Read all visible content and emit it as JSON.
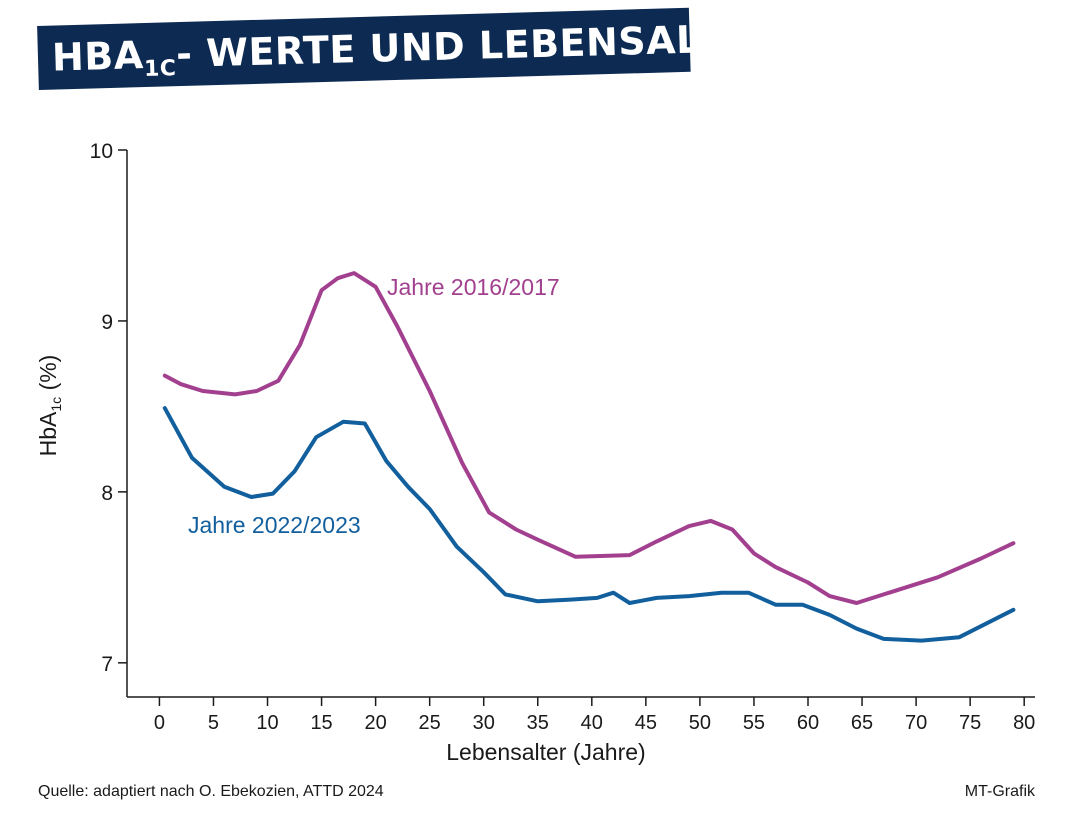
{
  "title": {
    "main": "HBA",
    "sub": "1C",
    "rest": "- WERTE UND LEBENSALTER"
  },
  "colors": {
    "banner": "#0c2a52",
    "series_2016": "#a2408f",
    "series_2022": "#125f9e",
    "axis": "#1a1a1a"
  },
  "source": "Quelle: adaptiert nach O. Ebekozien, ATTD 2024",
  "credit": "MT-Grafik",
  "chart_data": {
    "type": "line",
    "xlabel": "Lebensalter (Jahre)",
    "ylabel": "HbA1c (%)",
    "xlim": [
      -3,
      81
    ],
    "ylim": [
      6.8,
      10
    ],
    "xticks": [
      0,
      5,
      10,
      15,
      20,
      25,
      30,
      35,
      40,
      45,
      50,
      55,
      60,
      65,
      70,
      75,
      80
    ],
    "yticks": [
      7,
      8,
      9,
      10
    ],
    "grid": false,
    "series": [
      {
        "name": "Jahre 2016/2017",
        "color": "#a2408f",
        "x": [
          0.5,
          2,
          4,
          7,
          9,
          11,
          13,
          15,
          16.5,
          18,
          20,
          22,
          25,
          28,
          30.5,
          33,
          35,
          38.5,
          43.5,
          46,
          49,
          51,
          53,
          55,
          57,
          60,
          62,
          64.5,
          67,
          72,
          76,
          79
        ],
        "y": [
          8.68,
          8.63,
          8.59,
          8.57,
          8.59,
          8.65,
          8.86,
          9.18,
          9.25,
          9.28,
          9.2,
          8.97,
          8.59,
          8.17,
          7.88,
          7.78,
          7.72,
          7.62,
          7.63,
          7.71,
          7.8,
          7.83,
          7.78,
          7.64,
          7.56,
          7.47,
          7.39,
          7.35,
          7.4,
          7.5,
          7.61,
          7.7
        ]
      },
      {
        "name": "Jahre 2022/2023",
        "color": "#125f9e",
        "x": [
          0.5,
          3,
          6,
          8.5,
          10.5,
          12.5,
          14.5,
          17,
          19,
          21,
          23,
          25,
          27.5,
          30,
          32,
          35,
          38,
          40.5,
          42,
          43.5,
          46,
          49,
          52,
          54.5,
          57,
          59.5,
          62,
          64.5,
          67,
          70.5,
          74,
          79
        ],
        "y": [
          8.49,
          8.2,
          8.03,
          7.97,
          7.99,
          8.12,
          8.32,
          8.41,
          8.4,
          8.18,
          8.03,
          7.9,
          7.68,
          7.53,
          7.4,
          7.36,
          7.37,
          7.38,
          7.41,
          7.35,
          7.38,
          7.39,
          7.41,
          7.41,
          7.34,
          7.34,
          7.28,
          7.2,
          7.14,
          7.13,
          7.15,
          7.31
        ]
      }
    ]
  }
}
